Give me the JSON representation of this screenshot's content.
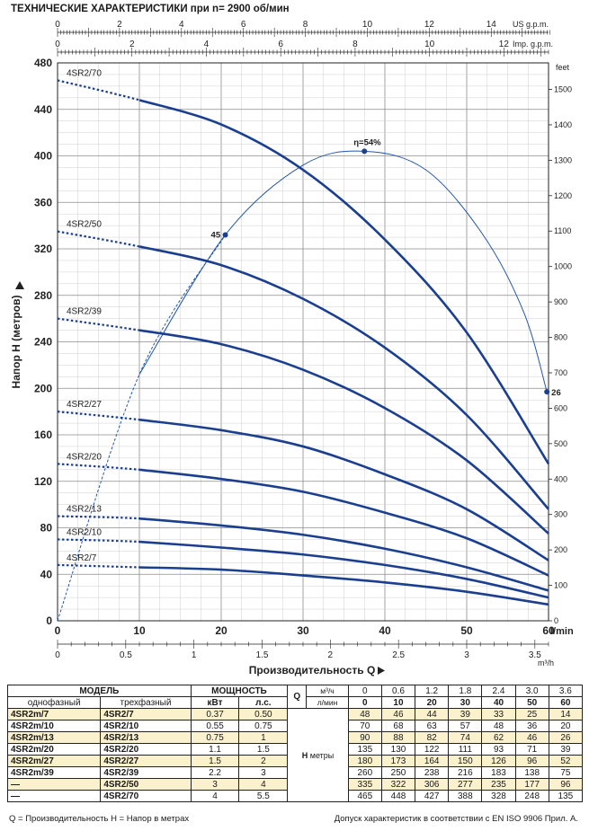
{
  "header": {
    "title": "ТЕХНИЧЕСКИЕ ХАРАКТЕРИСТИКИ при n= 2900 об/мин"
  },
  "chart_data": {
    "type": "line",
    "xlabel": "Производительность Q",
    "ylabel": "Напор H  (метров)",
    "x_unit": "l/min",
    "xlim": [
      0,
      60
    ],
    "ylim": [
      0,
      480
    ],
    "x_ticks": [
      "0",
      "10",
      "20",
      "30",
      "40",
      "50",
      "60"
    ],
    "y_ticks": [
      "0",
      "40",
      "80",
      "120",
      "160",
      "200",
      "240",
      "280",
      "320",
      "360",
      "400",
      "440",
      "480"
    ],
    "top_axes": [
      {
        "unit": "US g.p.m.",
        "ticks": [
          "0",
          "2",
          "4",
          "6",
          "8",
          "10",
          "12",
          "14"
        ],
        "max": 15.85
      },
      {
        "unit": "Imp. g.p.m.",
        "ticks": [
          "0",
          "2",
          "4",
          "6",
          "8",
          "10",
          "12"
        ],
        "max": 13.2
      }
    ],
    "bottom_axis": {
      "unit": "m³/h",
      "ticks": [
        "0",
        "0.5",
        "1",
        "1.5",
        "2",
        "2.5",
        "3",
        "3.5"
      ],
      "max": 3.6
    },
    "right_axis": {
      "unit": "feet",
      "ticks": [
        "0",
        "100",
        "200",
        "300",
        "400",
        "500",
        "600",
        "700",
        "800",
        "900",
        "1000",
        "1100",
        "1200",
        "1300",
        "1400",
        "1500"
      ]
    },
    "series": [
      {
        "name": "4SR2/70",
        "x": [
          0,
          10,
          20,
          30,
          40,
          50,
          60
        ],
        "y": [
          465,
          448,
          427,
          388,
          328,
          248,
          135
        ],
        "color": "#1b3f8f"
      },
      {
        "name": "4SR2/50",
        "x": [
          0,
          10,
          20,
          30,
          40,
          50,
          60
        ],
        "y": [
          335,
          322,
          306,
          277,
          235,
          177,
          96
        ],
        "color": "#1b3f8f"
      },
      {
        "name": "4SR2/39",
        "x": [
          0,
          10,
          20,
          30,
          40,
          50,
          60
        ],
        "y": [
          260,
          250,
          238,
          216,
          183,
          138,
          75
        ],
        "color": "#1b3f8f"
      },
      {
        "name": "4SR2/27",
        "x": [
          0,
          10,
          20,
          30,
          40,
          50,
          60
        ],
        "y": [
          180,
          173,
          164,
          150,
          126,
          96,
          52
        ],
        "color": "#1b3f8f"
      },
      {
        "name": "4SR2/20",
        "x": [
          0,
          10,
          20,
          30,
          40,
          50,
          60
        ],
        "y": [
          135,
          130,
          122,
          111,
          93,
          71,
          39
        ],
        "color": "#1b3f8f"
      },
      {
        "name": "4SR2/13",
        "x": [
          0,
          10,
          20,
          30,
          40,
          50,
          60
        ],
        "y": [
          90,
          88,
          82,
          74,
          62,
          46,
          26
        ],
        "color": "#1b3f8f"
      },
      {
        "name": "4SR2/10",
        "x": [
          0,
          10,
          20,
          30,
          40,
          50,
          60
        ],
        "y": [
          70,
          68,
          63,
          57,
          48,
          36,
          20
        ],
        "color": "#1b3f8f"
      },
      {
        "name": "4SR2/7",
        "x": [
          0,
          10,
          20,
          30,
          40,
          50,
          60
        ],
        "y": [
          48,
          46,
          44,
          39,
          33,
          25,
          14
        ],
        "color": "#1b3f8f"
      }
    ],
    "efficiency_curve": {
      "points": [
        {
          "x": 20.5,
          "y": 332,
          "label": "45"
        },
        {
          "x": 37.5,
          "y": 404,
          "label": "η=54%"
        },
        {
          "x": 59.8,
          "y": 197,
          "label": "26"
        }
      ],
      "color": "#2457a8"
    },
    "grid": true
  },
  "table": {
    "h_model": "МОДЕЛЬ",
    "h_power": "МОЩНОСТЬ",
    "h_single": "однофазный",
    "h_three": "трехфазный",
    "h_kw": "кВт",
    "h_hp": "л.с.",
    "q_letter": "Q",
    "q_unit_m3": "м³/ч",
    "q_unit_lmin": "л/мин",
    "q_m3": [
      "0",
      "0.6",
      "1.2",
      "1.8",
      "2.4",
      "3.0",
      "3.6"
    ],
    "q_lmin": [
      "0",
      "10",
      "20",
      "30",
      "40",
      "50",
      "60"
    ],
    "h_letter": "H",
    "h_unit": "метры",
    "rows": [
      {
        "single": "4SR2m/7",
        "three": "4SR2/7",
        "kw": "0.37",
        "hp": "0.50",
        "h": [
          "48",
          "46",
          "44",
          "39",
          "33",
          "25",
          "14"
        ]
      },
      {
        "single": "4SR2m/10",
        "three": "4SR2/10",
        "kw": "0.55",
        "hp": "0.75",
        "h": [
          "70",
          "68",
          "63",
          "57",
          "48",
          "36",
          "20"
        ]
      },
      {
        "single": "4SR2m/13",
        "three": "4SR2/13",
        "kw": "0.75",
        "hp": "1",
        "h": [
          "90",
          "88",
          "82",
          "74",
          "62",
          "46",
          "26"
        ]
      },
      {
        "single": "4SR2m/20",
        "three": "4SR2/20",
        "kw": "1.1",
        "hp": "1.5",
        "h": [
          "135",
          "130",
          "122",
          "111",
          "93",
          "71",
          "39"
        ]
      },
      {
        "single": "4SR2m/27",
        "three": "4SR2/27",
        "kw": "1.5",
        "hp": "2",
        "h": [
          "180",
          "173",
          "164",
          "150",
          "126",
          "96",
          "52"
        ]
      },
      {
        "single": "4SR2m/39",
        "three": "4SR2/39",
        "kw": "2.2",
        "hp": "3",
        "h": [
          "260",
          "250",
          "238",
          "216",
          "183",
          "138",
          "75"
        ]
      },
      {
        "single": "—",
        "three": "4SR2/50",
        "kw": "3",
        "hp": "4",
        "h": [
          "335",
          "322",
          "306",
          "277",
          "235",
          "177",
          "96"
        ]
      },
      {
        "single": "—",
        "three": "4SR2/70",
        "kw": "4",
        "hp": "5.5",
        "h": [
          "465",
          "448",
          "427",
          "388",
          "328",
          "248",
          "135"
        ]
      }
    ]
  },
  "footer": {
    "left": "Q = Производительность    H = Напор в метрах",
    "right": "Допуск характеристик в соответствии с EN ISO 9906 Прил.  A."
  }
}
